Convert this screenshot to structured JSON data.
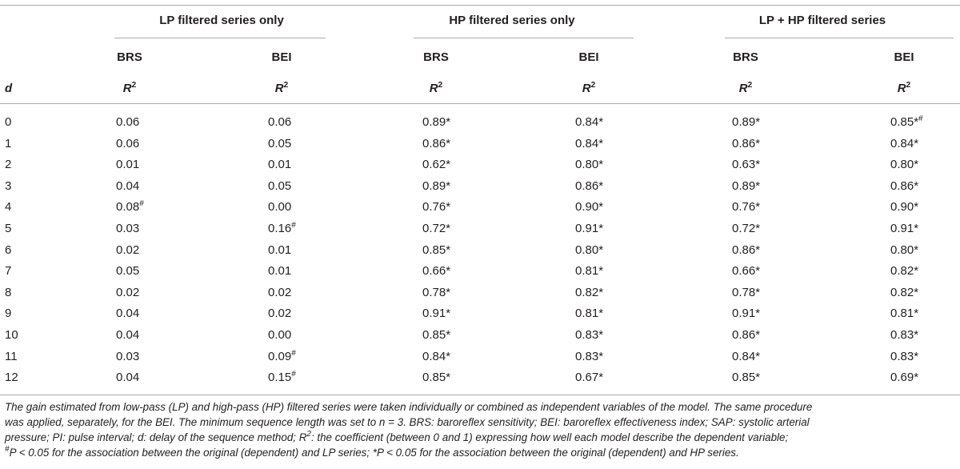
{
  "groups": [
    "LP filtered series only",
    "HP filtered series only",
    "LP + HP filtered series"
  ],
  "subheads": [
    "BRS",
    "BEI",
    "BRS",
    "BEI",
    "BRS",
    "BEI"
  ],
  "d_label": "d",
  "r2_label": "R",
  "r2_sup": "2",
  "rows": [
    {
      "d": "0",
      "cells": [
        [
          "0.06",
          ""
        ],
        [
          "0.06",
          ""
        ],
        [
          "0.89",
          "*"
        ],
        [
          "0.84",
          "*"
        ],
        [
          "0.89",
          "*"
        ],
        [
          "0.85",
          "*#"
        ]
      ]
    },
    {
      "d": "1",
      "cells": [
        [
          "0.06",
          ""
        ],
        [
          "0.05",
          ""
        ],
        [
          "0.86",
          "*"
        ],
        [
          "0.84",
          "*"
        ],
        [
          "0.86",
          "*"
        ],
        [
          "0.84",
          "*"
        ]
      ]
    },
    {
      "d": "2",
      "cells": [
        [
          "0.01",
          ""
        ],
        [
          "0.01",
          ""
        ],
        [
          "0.62",
          "*"
        ],
        [
          "0.80",
          "*"
        ],
        [
          "0.63",
          "*"
        ],
        [
          "0.80",
          "*"
        ]
      ]
    },
    {
      "d": "3",
      "cells": [
        [
          "0.04",
          ""
        ],
        [
          "0.05",
          ""
        ],
        [
          "0.89",
          "*"
        ],
        [
          "0.86",
          "*"
        ],
        [
          "0.89",
          "*"
        ],
        [
          "0.86",
          "*"
        ]
      ]
    },
    {
      "d": "4",
      "cells": [
        [
          "0.08",
          "#"
        ],
        [
          "0.00",
          ""
        ],
        [
          "0.76",
          "*"
        ],
        [
          "0.90",
          "*"
        ],
        [
          "0.76",
          "*"
        ],
        [
          "0.90",
          "*"
        ]
      ]
    },
    {
      "d": "5",
      "cells": [
        [
          "0.03",
          ""
        ],
        [
          "0.16",
          "#"
        ],
        [
          "0.72",
          "*"
        ],
        [
          "0.91",
          "*"
        ],
        [
          "0.72",
          "*"
        ],
        [
          "0.91",
          "*"
        ]
      ]
    },
    {
      "d": "6",
      "cells": [
        [
          "0.02",
          ""
        ],
        [
          "0.01",
          ""
        ],
        [
          "0.85",
          "*"
        ],
        [
          "0.80",
          "*"
        ],
        [
          "0.86",
          "*"
        ],
        [
          "0.80",
          "*"
        ]
      ]
    },
    {
      "d": "7",
      "cells": [
        [
          "0.05",
          ""
        ],
        [
          "0.01",
          ""
        ],
        [
          "0.66",
          "*"
        ],
        [
          "0.81",
          "*"
        ],
        [
          "0.66",
          "*"
        ],
        [
          "0.82",
          "*"
        ]
      ]
    },
    {
      "d": "8",
      "cells": [
        [
          "0.02",
          ""
        ],
        [
          "0.02",
          ""
        ],
        [
          "0.78",
          "*"
        ],
        [
          "0.82",
          "*"
        ],
        [
          "0.78",
          "*"
        ],
        [
          "0.82",
          "*"
        ]
      ]
    },
    {
      "d": "9",
      "cells": [
        [
          "0.04",
          ""
        ],
        [
          "0.02",
          ""
        ],
        [
          "0.91",
          "*"
        ],
        [
          "0.81",
          "*"
        ],
        [
          "0.91",
          "*"
        ],
        [
          "0.81",
          "*"
        ]
      ]
    },
    {
      "d": "10",
      "cells": [
        [
          "0.04",
          ""
        ],
        [
          "0.00",
          ""
        ],
        [
          "0.85",
          "*"
        ],
        [
          "0.83",
          "*"
        ],
        [
          "0.86",
          "*"
        ],
        [
          "0.83",
          "*"
        ]
      ]
    },
    {
      "d": "11",
      "cells": [
        [
          "0.03",
          ""
        ],
        [
          "0.09",
          "#"
        ],
        [
          "0.84",
          "*"
        ],
        [
          "0.83",
          "*"
        ],
        [
          "0.84",
          "*"
        ],
        [
          "0.83",
          "*"
        ]
      ]
    },
    {
      "d": "12",
      "cells": [
        [
          "0.04",
          ""
        ],
        [
          "0.15",
          "#"
        ],
        [
          "0.85",
          "*"
        ],
        [
          "0.67",
          "*"
        ],
        [
          "0.85",
          "*"
        ],
        [
          "0.69",
          "*"
        ]
      ]
    }
  ],
  "footnote": {
    "line1": "The gain estimated from low-pass (LP) and high-pass (HP) filtered series were taken individually or combined as independent variables of the model. The same procedure",
    "line2": "was applied, separately, for the BEI. The minimum sequence length was set to n = 3. BRS: baroreflex sensitivity; BEI: baroreflex effectiveness index; SAP: systolic arterial",
    "line3": "pressure; PI: pulse interval; d: delay of the sequence method; R",
    "line3_sup": "2",
    "line3_rest": ": the coefficient (between 0 and 1) expressing how well each model describe the dependent variable;",
    "line4_sup1": "#",
    "line4a": "P < 0.05 for the association between the original (dependent) and LP series; *P < 0.05 for the association between the original (dependent) and HP series."
  }
}
